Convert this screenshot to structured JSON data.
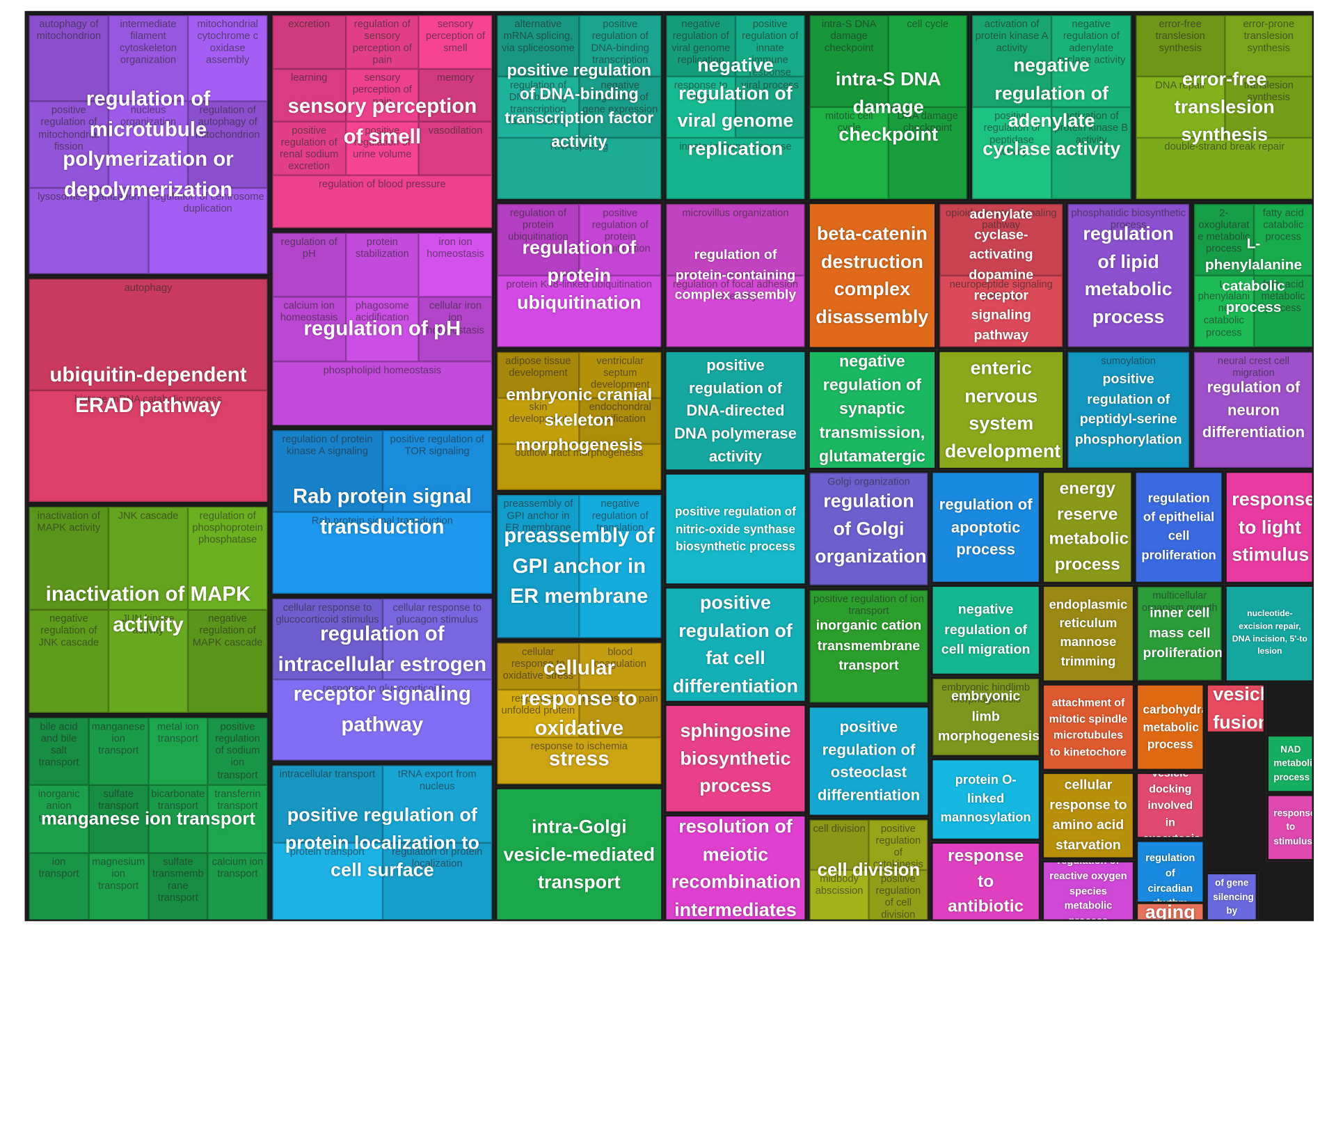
{
  "chart_data": {
    "type": "treemap",
    "title": "",
    "groups": [
      {
        "label": "regulation of microtubule polymerization or depolymerization",
        "color": "#9b59e6",
        "terms": [
          "autophagy of mitochondrion",
          "intermediate filament cytoskeleton organization",
          "mitochondrial cytochrome c oxidase assembly",
          "positive regulation of mitochondrial fission",
          "nucleus organization",
          "regulation of autophagy of mitochondrion",
          "lysosome organization",
          "regulation of centrosome duplication"
        ]
      },
      {
        "label": "ubiquitin-dependent ERAD pathway",
        "color": "#e0406a",
        "terms": [
          "autophagy",
          "histone mRNA catabolic process"
        ]
      },
      {
        "label": "inactivation of MAPK activity",
        "color": "#66a61e",
        "terms": [
          "inactivation of MAPK activity",
          "JNK cascade",
          "regulation of phosphoprotein phosphatase",
          "negative regulation of JNK cascade",
          "JUN kinase activity",
          "negative regulation of MAPK cascade"
        ]
      },
      {
        "label": "manganese ion transport",
        "color": "#1a9e4a",
        "terms": [
          "bile acid and bile salt transport",
          "manganese ion transport",
          "metal ion transport",
          "positive regulation of sodium ion transport",
          "inorganic anion transport",
          "sulfate transport",
          "bicarbonate transport",
          "transferrin transport",
          "ion transport",
          "magnesium ion transport",
          "sulfate transmembrane transport",
          "calcium ion transport"
        ]
      },
      {
        "label": "sensory perception of smell",
        "color": "#e8408a",
        "terms": [
          "excretion",
          "regulation of sensory perception of pain",
          "sensory perception of smell",
          "learning",
          "sensory perception of pain",
          "memory",
          "positive regulation of renal sodium excretion",
          "positive regulation of urine volume",
          "vasodilation",
          "regulation of blood pressure"
        ]
      },
      {
        "label": "regulation of pH",
        "color": "#c74de0",
        "terms": [
          "regulation of pH",
          "protein stabilization",
          "iron ion homeostasis",
          "calcium ion homeostasis",
          "phagosome acidification",
          "cellular iron ion homeostasis",
          "phospholipid homeostasis"
        ]
      },
      {
        "label": "Rab protein signal transduction",
        "color": "#1a8fe0",
        "terms": [
          "regulation of protein kinase A signaling",
          "positive regulation of TOR signaling",
          "Rab protein signal transduction"
        ]
      },
      {
        "label": "regulation of intracellular estrogen receptor signaling pathway",
        "color": "#7b68e6",
        "terms": [
          "cellular response to glucocorticoid stimulus",
          "cellular response to glucagon stimulus",
          "response to glucocorticoid"
        ]
      },
      {
        "label": "positive regulation of protein localization to cell surface",
        "color": "#1aa8d8",
        "terms": [
          "intracellular transport",
          "tRNA export from nucleus",
          "protein transport",
          "regulation of protein localization"
        ]
      },
      {
        "label": "positive regulation of DNA-binding transcription factor activity",
        "color": "#1aa893",
        "terms": [
          "alternative mRNA splicing, via spliceosome",
          "positive regulation of DNA-binding transcription factor activity",
          "regulation of DNA-binding transcription factor activity",
          "negative regulation of gene expression",
          "RNA splicing"
        ]
      },
      {
        "label": "regulation of protein ubiquitination",
        "color": "#c846d8",
        "terms": [
          "regulation of protein ubiquitination",
          "positive regulation of protein ubiquitination",
          "protein K48-linked ubiquitination"
        ]
      },
      {
        "label": "embryonic cranial skeleton morphogenesis",
        "color": "#b8960a",
        "terms": [
          "adipose tissue development",
          "ventricular septum development",
          "skin development",
          "endochondral ossification",
          "outflow tract morphogenesis"
        ]
      },
      {
        "label": "preassembly of GPI anchor in ER membrane",
        "color": "#14b0e0",
        "terms": [
          "preassembly of GPI anchor in ER membrane",
          "negative regulation of translation"
        ]
      },
      {
        "label": "cellular response to oxidative stress",
        "color": "#c8a010",
        "terms": [
          "cellular response to oxidative stress",
          "blood coagulation",
          "response to unfolded protein",
          "response to pain",
          "response to ischemia"
        ]
      },
      {
        "label": "intra-Golgi vesicle-mediated transport",
        "color": "#1aa84a",
        "terms": []
      },
      {
        "label": "negative regulation of viral genome replication",
        "color": "#16b08a",
        "terms": [
          "negative regulation of viral genome replication",
          "positive regulation of innate immune response",
          "response to virus",
          "viral process",
          "innate immune response"
        ]
      },
      {
        "label": "regulation of protein-containing complex assembly",
        "color": "#d84ad8",
        "terms": [
          "microvillus organization",
          "regulation of focal adhesion assembly"
        ]
      },
      {
        "label": "positive regulation of DNA-directed DNA polymerase activity",
        "color": "#14a8a0",
        "terms": []
      },
      {
        "label": "positive regulation of nitric-oxide synthase biosynthetic process",
        "color": "#14b8c8",
        "terms": []
      },
      {
        "label": "positive regulation of fat cell differentiation",
        "color": "#14b0b8",
        "terms": []
      },
      {
        "label": "sphingosine biosynthetic process",
        "color": "#e8408a",
        "terms": []
      },
      {
        "label": "resolution of meiotic recombination intermediates",
        "color": "#e040d0",
        "terms": []
      },
      {
        "label": "intra-S DNA damage checkpoint",
        "color": "#1aa840",
        "terms": [
          "intra-S DNA damage checkpoint",
          "cell cycle",
          "mitotic cell cycle",
          "DNA damage checkpoint"
        ]
      },
      {
        "label": "negative regulation of adenylate cyclase activity",
        "color": "#1ab87a",
        "terms": [
          "activation of protein kinase A activity",
          "negative regulation of adenylate cyclase activity",
          "positive regulation of peptidase activity",
          "activation of protein kinase B activity"
        ]
      },
      {
        "label": "error-free translesion synthesis",
        "color": "#7aa81a",
        "terms": [
          "error-free translesion synthesis",
          "error-prone translesion synthesis",
          "DNA repair",
          "translesion synthesis",
          "double-strand break repair"
        ]
      },
      {
        "label": "beta-catenin destruction complex disassembly",
        "color": "#e06a1a",
        "terms": []
      },
      {
        "label": "adenylate cyclase-activating dopamine receptor signaling pathway",
        "color": "#e04a5a",
        "terms": [
          "opioid receptor signaling pathway",
          "neuropeptide signaling pathway"
        ]
      },
      {
        "label": "regulation of lipid metabolic process",
        "color": "#9a5ae6",
        "terms": [
          "phosphatidic biosynthetic process"
        ]
      },
      {
        "label": "L-phenylalanine catabolic process",
        "color": "#1ab050",
        "terms": [
          "2-oxoglutarate metabolic process",
          "fatty acid catabolic process",
          "L-phenylalanine catabolic process",
          "fatty acid metabolic process"
        ]
      },
      {
        "label": "negative regulation of synaptic transmission, glutamatergic",
        "color": "#1ab860",
        "terms": []
      },
      {
        "label": "enteric nervous system development",
        "color": "#8aa81a",
        "terms": []
      },
      {
        "label": "positive regulation of peptidyl-serine phosphorylation",
        "color": "#14a8d8",
        "terms": [
          "sumoylation"
        ]
      },
      {
        "label": "regulation of neuron differentiation",
        "color": "#b05ae0",
        "terms": [
          "neural crest cell migration"
        ]
      },
      {
        "label": "regulation of Golgi organization",
        "color": "#7a6ae6",
        "terms": [
          "Golgi organization"
        ]
      },
      {
        "label": "inorganic cation transmembrane transport",
        "color": "#30b030",
        "terms": [
          "positive regulation of ion transport"
        ]
      },
      {
        "label": "positive regulation of osteoclast differentiation",
        "color": "#14a8d0",
        "terms": []
      },
      {
        "label": "cell division",
        "color": "#9aa818",
        "terms": [
          "cell division",
          "positive regulation of cytokinesis",
          "midbody abscission",
          "positive regulation of cell division"
        ]
      },
      {
        "label": "regulation of apoptotic process",
        "color": "#1a8ae0",
        "terms": []
      },
      {
        "label": "negative regulation of cell migration",
        "color": "#14b890",
        "terms": []
      },
      {
        "label": "embryonic limb morphogenesis",
        "color": "#8aa820",
        "terms": [
          "embryonic hindlimb morphogenesis"
        ]
      },
      {
        "label": "protein O-linked mannosylation",
        "color": "#14b8e0",
        "terms": []
      },
      {
        "label": "response to antibiotic",
        "color": "#e040c0",
        "terms": []
      },
      {
        "label": "energy reserve metabolic process",
        "color": "#8a9a18",
        "terms": []
      },
      {
        "label": "regulation of epithelial cell proliferation",
        "color": "#3a6ae0",
        "terms": []
      },
      {
        "label": "response to light stimulus",
        "color": "#e83aa0",
        "terms": []
      },
      {
        "label": "endoplasmic reticulum mannose trimming",
        "color": "#9a8a14",
        "terms": []
      },
      {
        "label": "inner cell mass cell proliferation",
        "color": "#30b040",
        "terms": [
          "multicellular organism growth"
        ]
      },
      {
        "label": "nucleotide-excision repair, DNA incision, 5'-to lesion",
        "color": "#14a8a0",
        "terms": []
      },
      {
        "label": "attachment of mitotic spindle microtubules to kinetochore",
        "color": "#e05a30",
        "terms": []
      },
      {
        "label": "carbohydrate metabolic process",
        "color": "#e06a14",
        "terms": []
      },
      {
        "label": "vesicle fusion",
        "color": "#e84a60",
        "terms": []
      },
      {
        "label": "cellular response to amino acid starvation",
        "color": "#b8900a",
        "terms": []
      },
      {
        "label": "vesicle docking involved in exocytosis",
        "color": "#e04a70",
        "terms": []
      },
      {
        "label": "NAD metabolic process",
        "color": "#14b060",
        "terms": []
      },
      {
        "label": "regulation of circadian rhythm",
        "color": "#1a8ae0",
        "terms": []
      },
      {
        "label": "response to stimulus",
        "color": "#e04ab0",
        "terms": []
      },
      {
        "label": "regulation of reactive oxygen species metabolic process",
        "color": "#d048d8",
        "terms": []
      },
      {
        "label": "aging",
        "color": "#e8705a",
        "terms": []
      },
      {
        "label": "regulation of gene silencing by miRNA",
        "color": "#6a6ae0",
        "terms": []
      }
    ]
  }
}
